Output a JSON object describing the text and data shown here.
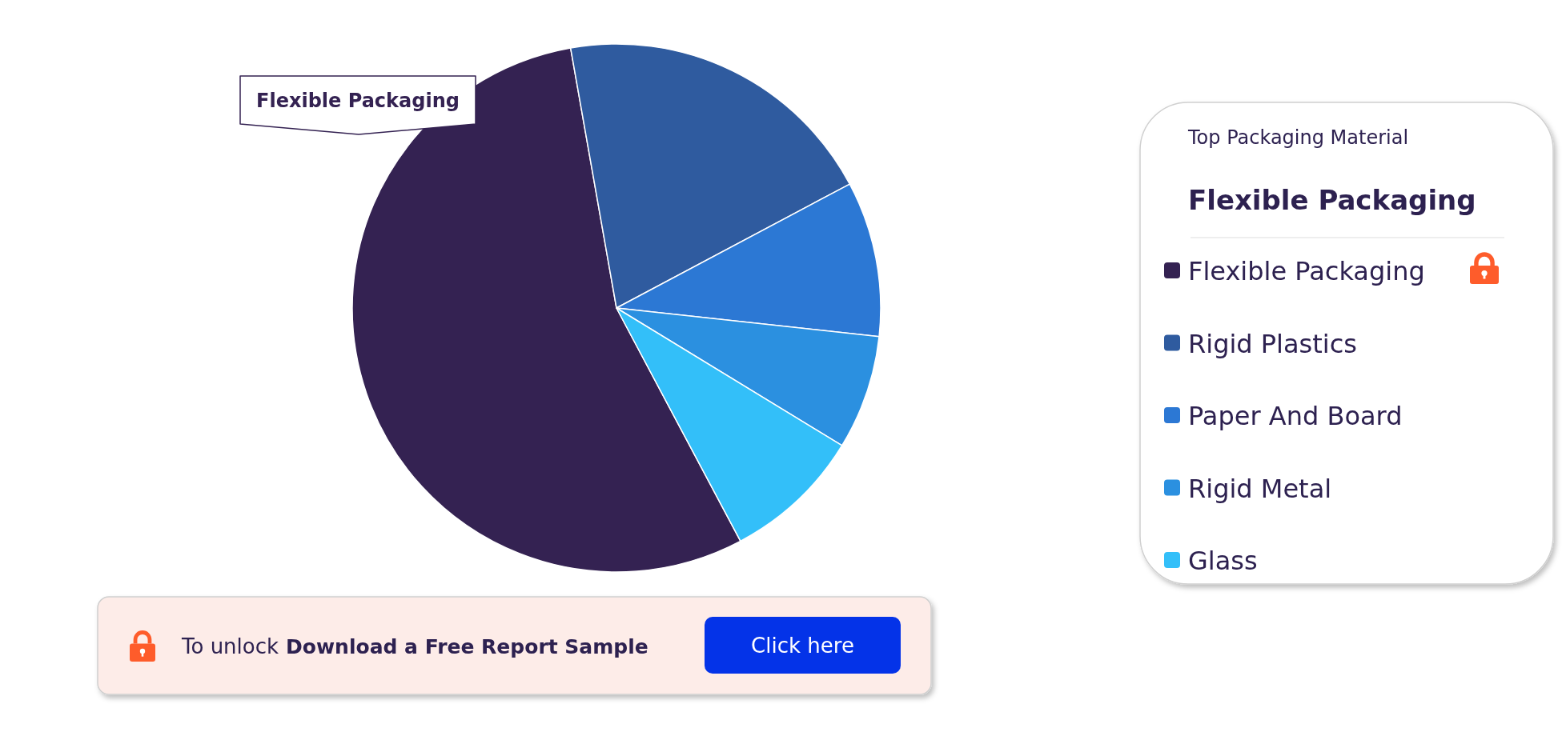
{
  "chart_data": {
    "type": "pie",
    "legend_title": "Top Packaging Material",
    "categories": [
      "Flexible Packaging",
      "Rigid Plastics",
      "Paper And Board",
      "Rigid Metal",
      "Glass"
    ],
    "values": [
      55,
      20,
      9.5,
      7,
      8.5
    ],
    "colors": [
      "#342252",
      "#2f5b9f",
      "#2c78d4",
      "#2b90e0",
      "#33bff9"
    ],
    "legend": "right",
    "annotations": [
      "Flexible Packaging",
      "Flexible Packaging",
      "To unlock",
      "Download a Free Report Sample",
      "Click here"
    ]
  }
}
